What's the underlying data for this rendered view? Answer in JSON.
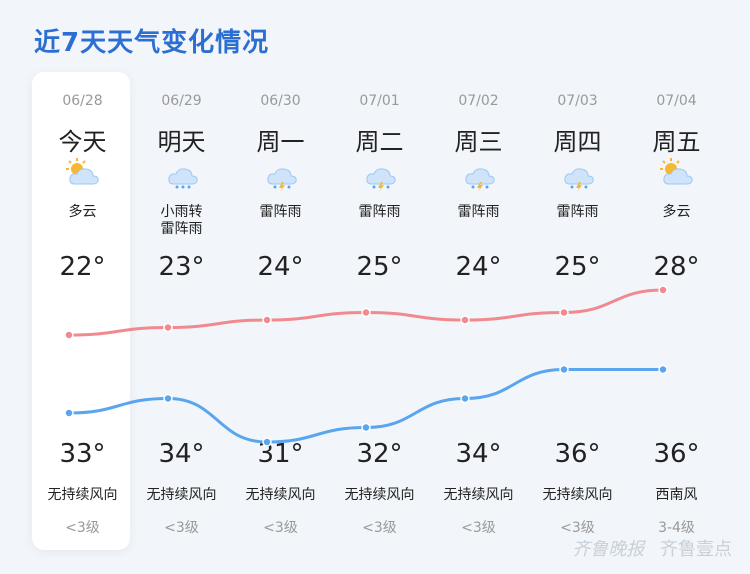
{
  "title": "近7天天气变化情况",
  "days": [
    {
      "date": "06/28",
      "day": "今天",
      "condition": "多云",
      "icon": "partly-cloudy-icon",
      "high": "22°",
      "low": "33°",
      "wind": "无持续风向",
      "level": "<3级"
    },
    {
      "date": "06/29",
      "day": "明天",
      "condition": "小雨转\n雷阵雨",
      "icon": "rain-icon",
      "high": "23°",
      "low": "34°",
      "wind": "无持续风向",
      "level": "<3级"
    },
    {
      "date": "06/30",
      "day": "周一",
      "condition": "雷阵雨",
      "icon": "thunderstorm-icon",
      "high": "24°",
      "low": "31°",
      "wind": "无持续风向",
      "level": "<3级"
    },
    {
      "date": "07/01",
      "day": "周二",
      "condition": "雷阵雨",
      "icon": "thunderstorm-icon",
      "high": "25°",
      "low": "32°",
      "wind": "无持续风向",
      "level": "<3级"
    },
    {
      "date": "07/02",
      "day": "周三",
      "condition": "雷阵雨",
      "icon": "thunderstorm-icon",
      "high": "24°",
      "low": "34°",
      "wind": "无持续风向",
      "level": "<3级"
    },
    {
      "date": "07/03",
      "day": "周四",
      "condition": "雷阵雨",
      "icon": "thunderstorm-icon",
      "high": "25°",
      "low": "36°",
      "wind": "无持续风向",
      "level": "<3级"
    },
    {
      "date": "07/04",
      "day": "周五",
      "condition": "多云",
      "icon": "partly-cloudy-icon",
      "high": "28°",
      "low": "36°",
      "wind": "西南风",
      "level": "3-4级"
    }
  ],
  "colors": {
    "title": "#2a6fd1",
    "high_line": "#f08a8e",
    "low_line": "#5aa6ee"
  },
  "watermark": {
    "brand": "齐鲁晚报",
    "app": "齐鲁壹点"
  }
}
